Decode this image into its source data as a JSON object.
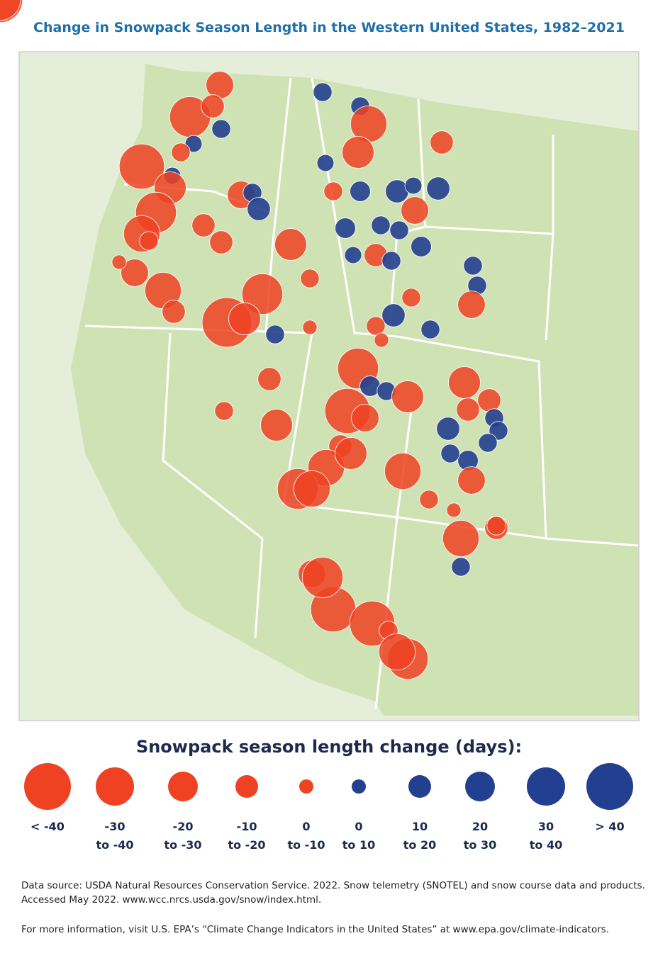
{
  "title": "Change in Snowpack Season Length in the Western United States, 1982–2021",
  "legend": {
    "title": "Snowpack season length change (days):",
    "classes": [
      {
        "label": [
          "< -40"
        ],
        "color": "#ef4223"
      },
      {
        "label": [
          "-30",
          "to -40"
        ],
        "color": "#ef4223"
      },
      {
        "label": [
          "-20",
          "to -30"
        ],
        "color": "#ef4223"
      },
      {
        "label": [
          "-10",
          "to -20"
        ],
        "color": "#ef4223"
      },
      {
        "label": [
          "0",
          "to -10"
        ],
        "color": "#ef4223"
      },
      {
        "label": [
          "0",
          "to 10"
        ],
        "color": "#233f8f"
      },
      {
        "label": [
          "10",
          "to 20"
        ],
        "color": "#233f8f"
      },
      {
        "label": [
          "20",
          "to 30"
        ],
        "color": "#233f8f"
      },
      {
        "label": [
          "30",
          "to 40"
        ],
        "color": "#233f8f"
      },
      {
        "label": [
          "> 40"
        ],
        "color": "#233f8f"
      }
    ]
  },
  "sites": {
    "change": [
      -20,
      -35,
      -15,
      10,
      8,
      -40,
      8,
      -25,
      -10,
      -35,
      -30,
      -10,
      -20,
      -30,
      -15,
      -5,
      -15,
      -20,
      10,
      15,
      -15,
      -25,
      -35,
      -45,
      -25,
      10,
      -15,
      -25,
      -10,
      -10,
      -5,
      10,
      10,
      -30,
      -25,
      8,
      -10,
      12,
      15,
      8,
      15,
      -20,
      -15,
      12,
      10,
      10,
      12,
      -15,
      10,
      8,
      10,
      10,
      -20,
      15,
      10,
      -10,
      -10,
      -5,
      -35,
      -40,
      12,
      10,
      -25,
      -20,
      -15,
      -30,
      -35,
      -30,
      -25,
      -30,
      -25,
      -15,
      -15,
      10,
      10,
      10,
      12,
      10,
      15,
      -20,
      -10,
      -5,
      -15,
      -10,
      -30,
      10,
      -20,
      -40,
      -35,
      -40,
      -10,
      -35,
      -30,
      -40,
      -35
    ]
  },
  "source": [
    "Data source: USDA Natural Resources Conservation Service. 2022. Snow telemetry (SNOTEL) and snow course data and products. Accessed May 2022. www.wcc.nrcs.usda.gov/snow/index.html.",
    "For more information, visit U.S. EPA’s “Climate Change Indicators in the United States” at www.epa.gov/climate-indicators."
  ]
}
